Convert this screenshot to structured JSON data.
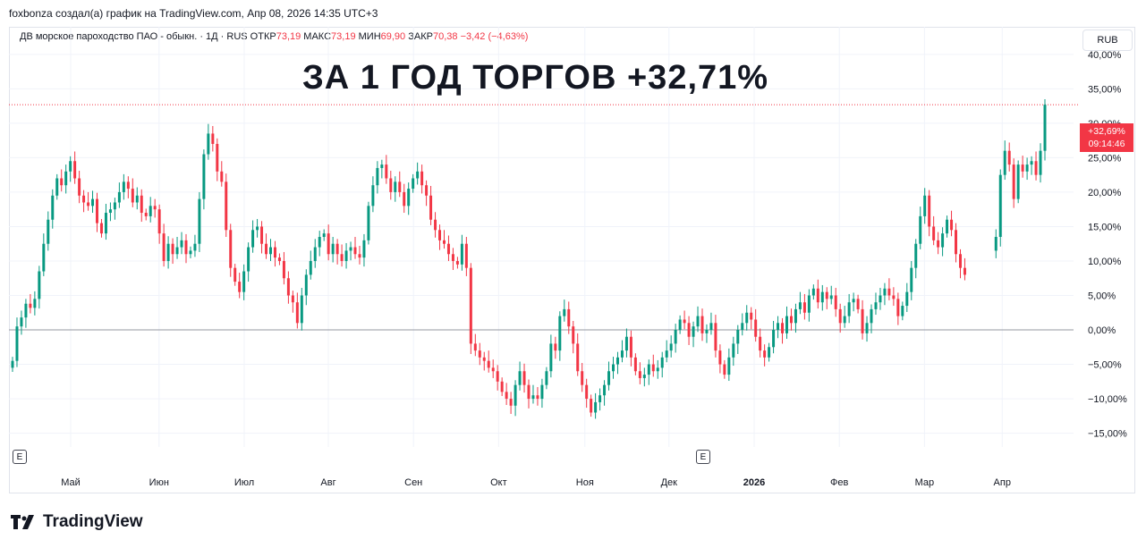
{
  "header": {
    "attribution": "foxbonza создал(а) график на TradingView.com, Апр 08, 2026 14:35 UTC+3"
  },
  "legend": {
    "symbol": "ДВ морское пароходство ПАО - обыкн. · 1Д · RUS",
    "open_label": "ОТКР",
    "open_value": "73,19",
    "high_label": "МАКС",
    "high_value": "73,19",
    "low_label": "МИН",
    "low_value": "69,90",
    "close_label": "ЗАКР",
    "close_value": "70,38",
    "change": "−3,42 (−4,63%)"
  },
  "currency": "RUB",
  "headline": "ЗА 1 ГОД ТОРГОВ +32,71%",
  "price_tag": {
    "percent": "+32,69%",
    "countdown": "09:14:46"
  },
  "event_badge": "E",
  "logo_text": "TradingView",
  "colors": {
    "up": "#089981",
    "down": "#f23645",
    "grid": "#f0f3fa",
    "zero_line": "#9598a1"
  },
  "chart_data": {
    "type": "candlestick",
    "y_unit": "%",
    "ylim": [
      -17,
      44
    ],
    "y_ticks": [
      -15,
      -10,
      -5,
      0,
      5,
      10,
      15,
      20,
      25,
      30,
      35,
      40
    ],
    "y_tick_labels": [
      "−15,00%",
      "−10,00%",
      "−5,00%",
      "0,00%",
      "5,00%",
      "10,00%",
      "15,00%",
      "20,00%",
      "25,00%",
      "30,00%",
      "35,00%",
      "40,00%"
    ],
    "x_labels": [
      "Май",
      "Июн",
      "Июл",
      "Авг",
      "Сен",
      "Окт",
      "Ноя",
      "Дек",
      "2026",
      "Фев",
      "Мар",
      "Апр"
    ],
    "last_value": 32.69,
    "reference_line": 0,
    "closes": [
      -4.5,
      0.5,
      1.8,
      3.8,
      3.2,
      4.5,
      8.5,
      12.5,
      16,
      19.5,
      22,
      21,
      23,
      24.5,
      22,
      19.5,
      18.5,
      18,
      19,
      15.5,
      14,
      17,
      17.5,
      18.5,
      20,
      21.5,
      20.5,
      18.5,
      19.5,
      17,
      16.5,
      18,
      17.5,
      14,
      10,
      12.5,
      11,
      12,
      13,
      11,
      11.5,
      12.5,
      19,
      25.5,
      28.5,
      27,
      23,
      21.5,
      14.5,
      9,
      7,
      5.5,
      8.5,
      12,
      14.5,
      15,
      12.5,
      11,
      12,
      10.5,
      10,
      7.5,
      5,
      4,
      1,
      5,
      8,
      10,
      12,
      13.5,
      14,
      11,
      12.5,
      11,
      10,
      11.5,
      12,
      11,
      10.5,
      13,
      18,
      21,
      23.5,
      24,
      22,
      20,
      21.5,
      20,
      18,
      20.5,
      22,
      23,
      21,
      19.5,
      16,
      14.5,
      13,
      12.5,
      11,
      10,
      9.5,
      12.5,
      9,
      -2,
      -3,
      -4,
      -4.5,
      -5.5,
      -6,
      -7.5,
      -9,
      -10,
      -11,
      -8,
      -6,
      -8,
      -10,
      -9.5,
      -10,
      -8,
      -6,
      -2,
      -3,
      2,
      3,
      0.5,
      -2,
      -6,
      -8,
      -10,
      -12,
      -10.5,
      -9.5,
      -8,
      -6,
      -5,
      -4,
      -3,
      -1,
      -4,
      -6,
      -7,
      -6.5,
      -5,
      -6,
      -5.5,
      -4,
      -3,
      -2,
      0,
      1.5,
      1,
      -1,
      0.5,
      2,
      -0.5,
      0,
      1,
      -3,
      -5,
      -6.5,
      -4,
      -2,
      0,
      1,
      2.5,
      1.5,
      -1,
      -3,
      -4,
      -2.5,
      0,
      1,
      -0.5,
      2,
      1,
      3,
      4,
      2.5,
      5,
      6,
      4,
      5.5,
      4.5,
      5,
      3,
      1,
      2,
      4,
      4.5,
      3,
      -0.5,
      1,
      3,
      4,
      5,
      6,
      5,
      4.5,
      2,
      3.5,
      5.5,
      9,
      12.5,
      16.5,
      19.5,
      15,
      13,
      12,
      14,
      16,
      14.5,
      11,
      9,
      8
    ],
    "gap_after_index": 208,
    "closes_after_gap": [
      13.5,
      22.5,
      26,
      24,
      19,
      24,
      23,
      24,
      24.5,
      22.5,
      26,
      32.69
    ]
  }
}
